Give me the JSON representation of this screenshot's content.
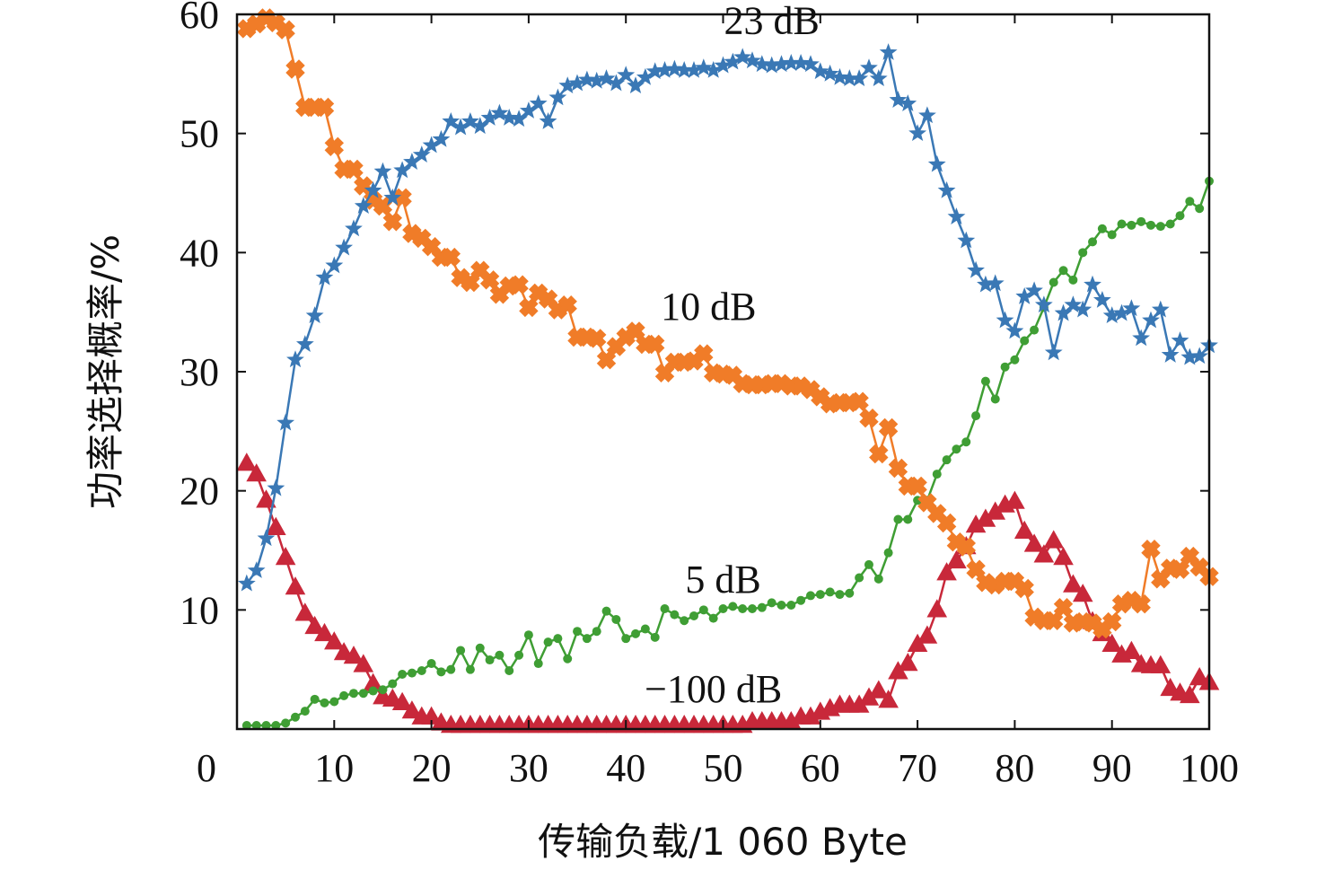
{
  "chart_data": {
    "type": "line",
    "title": "",
    "xlabel": "传输负载/1 060 Byte",
    "ylabel": "功率选择概率/%",
    "xlim": [
      0,
      100
    ],
    "ylim": [
      0,
      60
    ],
    "x_ticks": [
      "0",
      "10",
      "20",
      "30",
      "40",
      "50",
      "60",
      "70",
      "80",
      "90",
      "100"
    ],
    "y_ticks": [
      "10",
      "20",
      "30",
      "40",
      "50",
      "60"
    ],
    "grid": false,
    "x": [
      1,
      2,
      3,
      4,
      5,
      6,
      7,
      8,
      9,
      10,
      11,
      12,
      13,
      14,
      15,
      16,
      17,
      18,
      19,
      20,
      21,
      22,
      23,
      24,
      25,
      26,
      27,
      28,
      29,
      30,
      31,
      32,
      33,
      34,
      35,
      36,
      37,
      38,
      39,
      40,
      41,
      42,
      43,
      44,
      45,
      46,
      47,
      48,
      49,
      50,
      51,
      52,
      53,
      54,
      55,
      56,
      57,
      58,
      59,
      60,
      61,
      62,
      63,
      64,
      65,
      66,
      67,
      68,
      69,
      70,
      71,
      72,
      73,
      74,
      75,
      76,
      77,
      78,
      79,
      80,
      81,
      82,
      83,
      84,
      85,
      86,
      87,
      88,
      89,
      90,
      91,
      92,
      93,
      94,
      95,
      96,
      97,
      98,
      99,
      100
    ],
    "series": [
      {
        "name": "23 dB",
        "label": "23 dB",
        "color": "#3a78b5",
        "marker": "star",
        "values": [
          12.2,
          13.3,
          16,
          20.2,
          25.7,
          31,
          32.3,
          34.7,
          37.9,
          38.9,
          40.4,
          42,
          43.9,
          45.2,
          46.8,
          44.6,
          46.9,
          47.6,
          48.2,
          49,
          49.5,
          51,
          50.5,
          51,
          50.6,
          51.3,
          51.7,
          51.3,
          51.2,
          51.9,
          52.5,
          51,
          53,
          54,
          54.2,
          54.5,
          54.4,
          54.6,
          54.2,
          54.9,
          54,
          54.7,
          55.2,
          55.3,
          55.4,
          55.3,
          55.3,
          55.5,
          55.3,
          55.7,
          56,
          56.4,
          56.1,
          55.8,
          55.7,
          55.8,
          55.9,
          55.9,
          55.8,
          55.2,
          55,
          54.7,
          54.6,
          54.6,
          55.5,
          54.6,
          56.8,
          52.8,
          52.5,
          50,
          51.5,
          47.4,
          45.2,
          43,
          41,
          38.5,
          37.3,
          37.4,
          34.3,
          33.4,
          36.3,
          36.8,
          35.6,
          31.6,
          34.9,
          35.6,
          35.2,
          37.3,
          36,
          34.7,
          34.9,
          35.3,
          32.8,
          34.3,
          35.2,
          31.4,
          32.6,
          31.2,
          31.3,
          32.2
        ]
      },
      {
        "name": "10 dB",
        "label": "10 dB",
        "color": "#f07c28",
        "marker": "cross",
        "values": [
          58.8,
          59.2,
          59.7,
          59.3,
          58.7,
          55.4,
          52.2,
          52.2,
          52.2,
          48.9,
          47,
          47,
          45.6,
          44.4,
          43.9,
          42.6,
          44.6,
          41.6,
          41.2,
          40.5,
          39.6,
          39.6,
          37.9,
          37.5,
          38.5,
          37.7,
          36.5,
          37.2,
          37.3,
          35.4,
          36.6,
          36.1,
          35.2,
          35.6,
          32.9,
          32.9,
          32.8,
          31,
          32.1,
          32.9,
          33.4,
          32.3,
          32.3,
          29.9,
          30.8,
          30.8,
          30.9,
          31.5,
          29.9,
          29.8,
          29.7,
          29,
          28.9,
          28.9,
          29,
          29,
          28.8,
          28.8,
          28.5,
          27.9,
          27.3,
          27.4,
          27.4,
          27.5,
          26.1,
          23.1,
          25.3,
          21.9,
          20.4,
          20.4,
          19,
          18.1,
          17.3,
          15.7,
          15.3,
          13.4,
          12.3,
          12.1,
          12.4,
          12.4,
          11.8,
          9.4,
          9.1,
          9.1,
          10.2,
          8.9,
          9,
          8.9,
          8.4,
          9,
          10.5,
          10.8,
          10.5,
          15.1,
          12.6,
          13.5,
          13.4,
          14.5,
          13.6,
          12.8
        ]
      },
      {
        "name": "5 dB",
        "label": "5 dB",
        "color": "#3f9e34",
        "marker": "dot",
        "values": [
          0.3,
          0.3,
          0.3,
          0.3,
          0.5,
          1,
          1.5,
          2.5,
          2.2,
          2.3,
          2.8,
          3,
          3,
          3.2,
          3.3,
          3.8,
          4.6,
          4.7,
          4.9,
          5.5,
          4.8,
          5,
          6.6,
          5,
          6.8,
          5.8,
          6.2,
          4.9,
          6.2,
          7.9,
          5.5,
          7.3,
          7.6,
          5.9,
          8.2,
          7.6,
          8.2,
          9.9,
          9.2,
          7.6,
          8,
          8.4,
          7.7,
          10.1,
          9.6,
          9.1,
          9.5,
          10,
          9.3,
          10.1,
          10.3,
          10.1,
          10.1,
          10.2,
          10.6,
          10.4,
          10.4,
          10.8,
          11.2,
          11.3,
          11.5,
          11.3,
          11.4,
          12.7,
          13.8,
          12.6,
          14.8,
          17.6,
          17.6,
          19.2,
          19.2,
          21.4,
          22.6,
          23.5,
          24.1,
          26.3,
          29.2,
          27.7,
          30.4,
          31,
          32.6,
          33.5,
          35.4,
          37.5,
          38.5,
          37.7,
          40,
          40.9,
          42,
          41.5,
          42.4,
          42.3,
          42.6,
          42.3,
          42.2,
          42.4,
          43.1,
          44.3,
          43.7,
          46
        ]
      },
      {
        "name": "-100 dB",
        "label": "−100 dB",
        "color": "#c8283a",
        "marker": "triangle",
        "values": [
          22.3,
          21.4,
          19.2,
          16.9,
          14.4,
          11.9,
          9.7,
          8.6,
          8,
          7.3,
          6.4,
          6.1,
          5.4,
          3.8,
          2.7,
          2.5,
          2.2,
          1.5,
          1,
          1,
          0.5,
          0.3,
          0.3,
          0.3,
          0.3,
          0.3,
          0.3,
          0.3,
          0.3,
          0.3,
          0.3,
          0.3,
          0.3,
          0.3,
          0.3,
          0.3,
          0.3,
          0.3,
          0.3,
          0.3,
          0.3,
          0.3,
          0.3,
          0.3,
          0.3,
          0.3,
          0.3,
          0.3,
          0.3,
          0.3,
          0.3,
          0.3,
          0.6,
          0.6,
          0.6,
          0.6,
          0.6,
          1,
          1,
          1.4,
          1.7,
          2,
          2,
          2,
          2.6,
          3.2,
          2.4,
          4.8,
          5.5,
          7.1,
          7.8,
          10,
          13.1,
          14.1,
          15.3,
          17.1,
          17.6,
          18.2,
          18.8,
          19.1,
          16.6,
          15.5,
          14.6,
          15.8,
          14.4,
          12.1,
          11.3,
          9,
          8,
          7.1,
          6.2,
          6.5,
          5.4,
          5.3,
          5.3,
          3.4,
          3,
          2.8,
          4.3,
          3.9
        ]
      }
    ],
    "annotations": [
      {
        "text": "23 dB",
        "x": 55,
        "y": 59.5
      },
      {
        "text": "10 dB",
        "x": 48.5,
        "y": 35.5
      },
      {
        "text": "5 dB",
        "x": 50,
        "y": 12.6
      },
      {
        "text": "−100 dB",
        "x": 49,
        "y": 3.4
      }
    ]
  }
}
